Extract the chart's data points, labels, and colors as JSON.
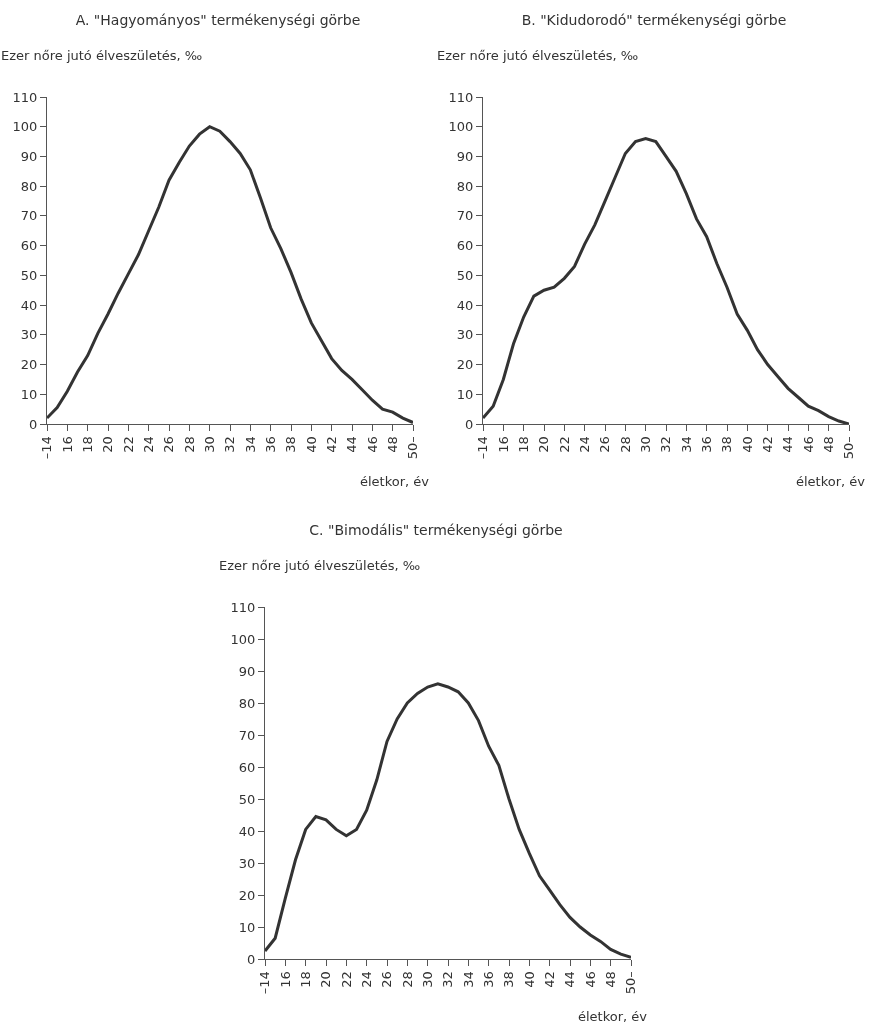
{
  "chart_data": [
    {
      "type": "line",
      "title": "A. \"Hagyományos\" termékenységi görbe",
      "ylabel": "Ezer nőre jutó élveszületés, ‰",
      "xlabel": "életkor, év",
      "color": "#333333",
      "line_style": "solid",
      "ylim": [
        0,
        110
      ],
      "yticks": [
        0,
        10,
        20,
        30,
        40,
        50,
        60,
        70,
        80,
        90,
        100,
        110
      ],
      "categories": [
        "–14",
        null,
        "16",
        null,
        "18",
        null,
        "20",
        null,
        "22",
        null,
        "24",
        null,
        "26",
        null,
        "28",
        null,
        "30",
        null,
        "32",
        null,
        "34",
        null,
        "36",
        null,
        "38",
        null,
        "40",
        null,
        "42",
        null,
        "44",
        null,
        "46",
        null,
        "48",
        null,
        "50–"
      ],
      "values": [
        2,
        5.5,
        11,
        17.5,
        23,
        30.5,
        37,
        44,
        50.5,
        57,
        65,
        73,
        82,
        88,
        93.5,
        97.5,
        100,
        98.5,
        95,
        91,
        85.5,
        76,
        66,
        59,
        51,
        42,
        34,
        28,
        22,
        18,
        15,
        11.5,
        8,
        5,
        4,
        2,
        0.5
      ]
    },
    {
      "type": "line",
      "title": "B. \"Kidudorodó\" termékenységi görbe",
      "ylabel": "Ezer nőre jutó élveszületés, ‰",
      "xlabel": "életkor, év",
      "color": "#333333",
      "line_style": "solid",
      "ylim": [
        0,
        110
      ],
      "yticks": [
        0,
        10,
        20,
        30,
        40,
        50,
        60,
        70,
        80,
        90,
        100,
        110
      ],
      "categories": [
        "–14",
        null,
        "16",
        null,
        "18",
        null,
        "20",
        null,
        "22",
        null,
        "24",
        null,
        "26",
        null,
        "28",
        null,
        "30",
        null,
        "32",
        null,
        "34",
        null,
        "36",
        null,
        "38",
        null,
        "40",
        null,
        "42",
        null,
        "44",
        null,
        "46",
        null,
        "48",
        null,
        "50–"
      ],
      "values": [
        2,
        6,
        15,
        27,
        36,
        43,
        45,
        46,
        49,
        53,
        60.5,
        67,
        75,
        83,
        91,
        95,
        96,
        95,
        90,
        85,
        77.5,
        69,
        63,
        54,
        46,
        37,
        31.5,
        25,
        20,
        16,
        12,
        9,
        6,
        4.5,
        2.5,
        1,
        0
      ]
    },
    {
      "type": "line",
      "title": "C. \"Bimodális\" termékenységi görbe",
      "ylabel": "Ezer nőre jutó élveszületés, ‰",
      "xlabel": "életkor, év",
      "color": "#333333",
      "line_style": "solid",
      "ylim": [
        0,
        110
      ],
      "yticks": [
        0,
        10,
        20,
        30,
        40,
        50,
        60,
        70,
        80,
        90,
        100,
        110
      ],
      "categories": [
        "–14",
        null,
        "16",
        null,
        "18",
        null,
        "20",
        null,
        "22",
        null,
        "24",
        null,
        "26",
        null,
        "28",
        null,
        "30",
        null,
        "32",
        null,
        "34",
        null,
        "36",
        null,
        "38",
        null,
        "40",
        null,
        "42",
        null,
        "44",
        null,
        "46",
        null,
        "48",
        null,
        "50–"
      ],
      "values": [
        2.5,
        6.5,
        19,
        31,
        40.5,
        44.5,
        43.5,
        40.5,
        38.5,
        40.5,
        46.5,
        56,
        68,
        75,
        80,
        83,
        85,
        86,
        85,
        83.5,
        80,
        74.5,
        66.5,
        60.5,
        50,
        40.5,
        33,
        26,
        21.5,
        17,
        13,
        10,
        7.5,
        5.5,
        3,
        1.5,
        0.5
      ]
    }
  ]
}
